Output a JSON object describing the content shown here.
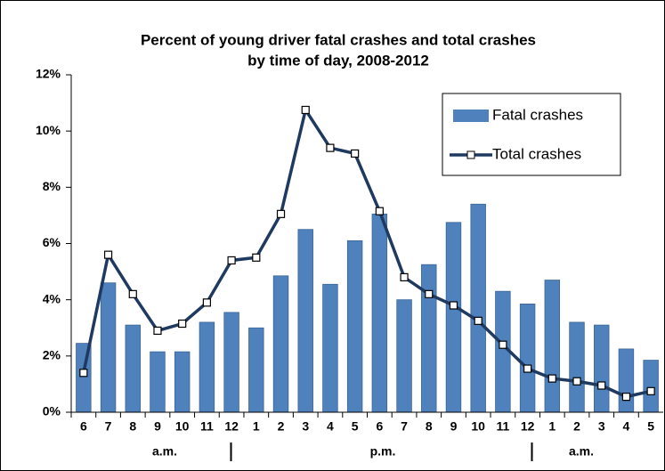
{
  "chart_data": {
    "type": "bar_line",
    "title_lines": [
      "Percent of young driver fatal crashes and total crashes",
      "by time of day, 2008-2012"
    ],
    "categories": [
      "6",
      "7",
      "8",
      "9",
      "10",
      "11",
      "12",
      "1",
      "2",
      "3",
      "4",
      "5",
      "6",
      "7",
      "8",
      "9",
      "10",
      "11",
      "12",
      "1",
      "2",
      "3",
      "4",
      "5"
    ],
    "period_labels": [
      "a.m.",
      "p.m.",
      "a.m."
    ],
    "series": [
      {
        "name": "Fatal crashes",
        "kind": "bar",
        "color": "#4f81bd",
        "values": [
          2.45,
          4.6,
          3.1,
          2.15,
          2.15,
          3.2,
          3.55,
          3.0,
          4.85,
          6.5,
          4.55,
          6.1,
          7.05,
          4.0,
          5.25,
          6.75,
          7.4,
          4.3,
          3.85,
          4.7,
          3.2,
          3.1,
          2.25,
          1.85
        ]
      },
      {
        "name": "Total crashes",
        "kind": "line",
        "color": "#1f3a60",
        "values": [
          1.4,
          5.6,
          4.2,
          2.9,
          3.15,
          3.9,
          5.4,
          5.5,
          7.05,
          10.75,
          9.4,
          9.2,
          7.15,
          4.8,
          4.2,
          3.8,
          3.25,
          2.4,
          1.55,
          1.2,
          1.1,
          0.95,
          0.55,
          0.75
        ]
      }
    ],
    "ylim": [
      0,
      12
    ],
    "yticks": [
      {
        "value": 0,
        "label": "0%"
      },
      {
        "value": 2,
        "label": "2%"
      },
      {
        "value": 4,
        "label": "4%"
      },
      {
        "value": 6,
        "label": "6%"
      },
      {
        "value": 8,
        "label": "8%"
      },
      {
        "value": 10,
        "label": "10%"
      },
      {
        "value": 12,
        "label": "12%"
      }
    ],
    "grid": false,
    "legend": "top-right"
  }
}
